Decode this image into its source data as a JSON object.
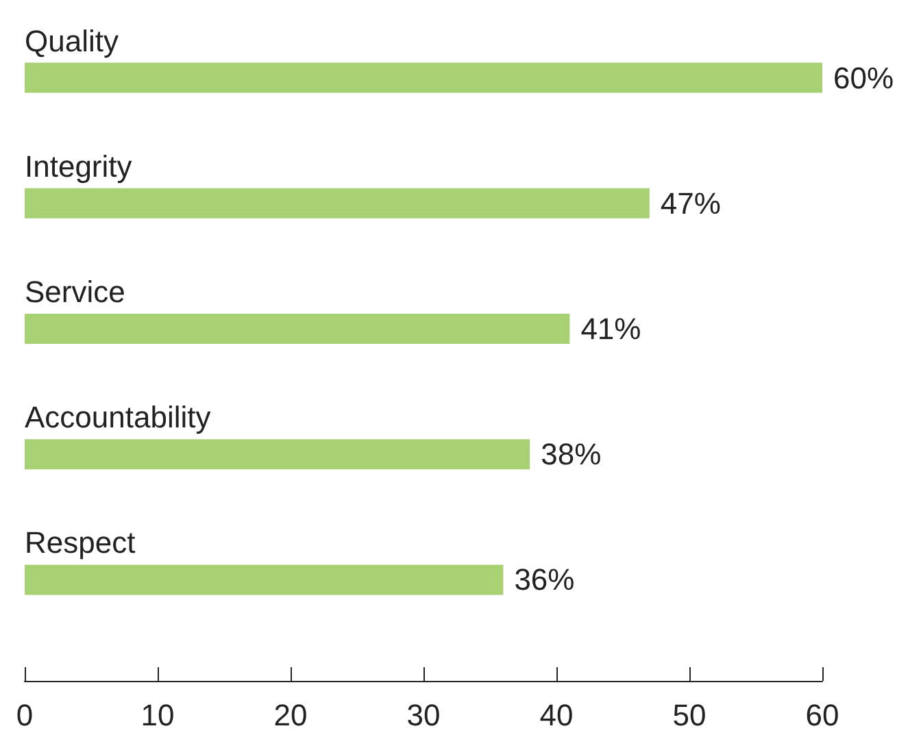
{
  "chart_data": {
    "type": "bar",
    "orientation": "horizontal",
    "categories": [
      "Quality",
      "Integrity",
      "Service",
      "Accountability",
      "Respect"
    ],
    "values": [
      60,
      47,
      41,
      38,
      36
    ],
    "value_labels": [
      "60%",
      "47%",
      "41%",
      "38%",
      "36%"
    ],
    "color": "#a8d173",
    "xlim": [
      0,
      60
    ],
    "xticks": [
      0,
      10,
      20,
      30,
      40,
      50,
      60
    ]
  }
}
